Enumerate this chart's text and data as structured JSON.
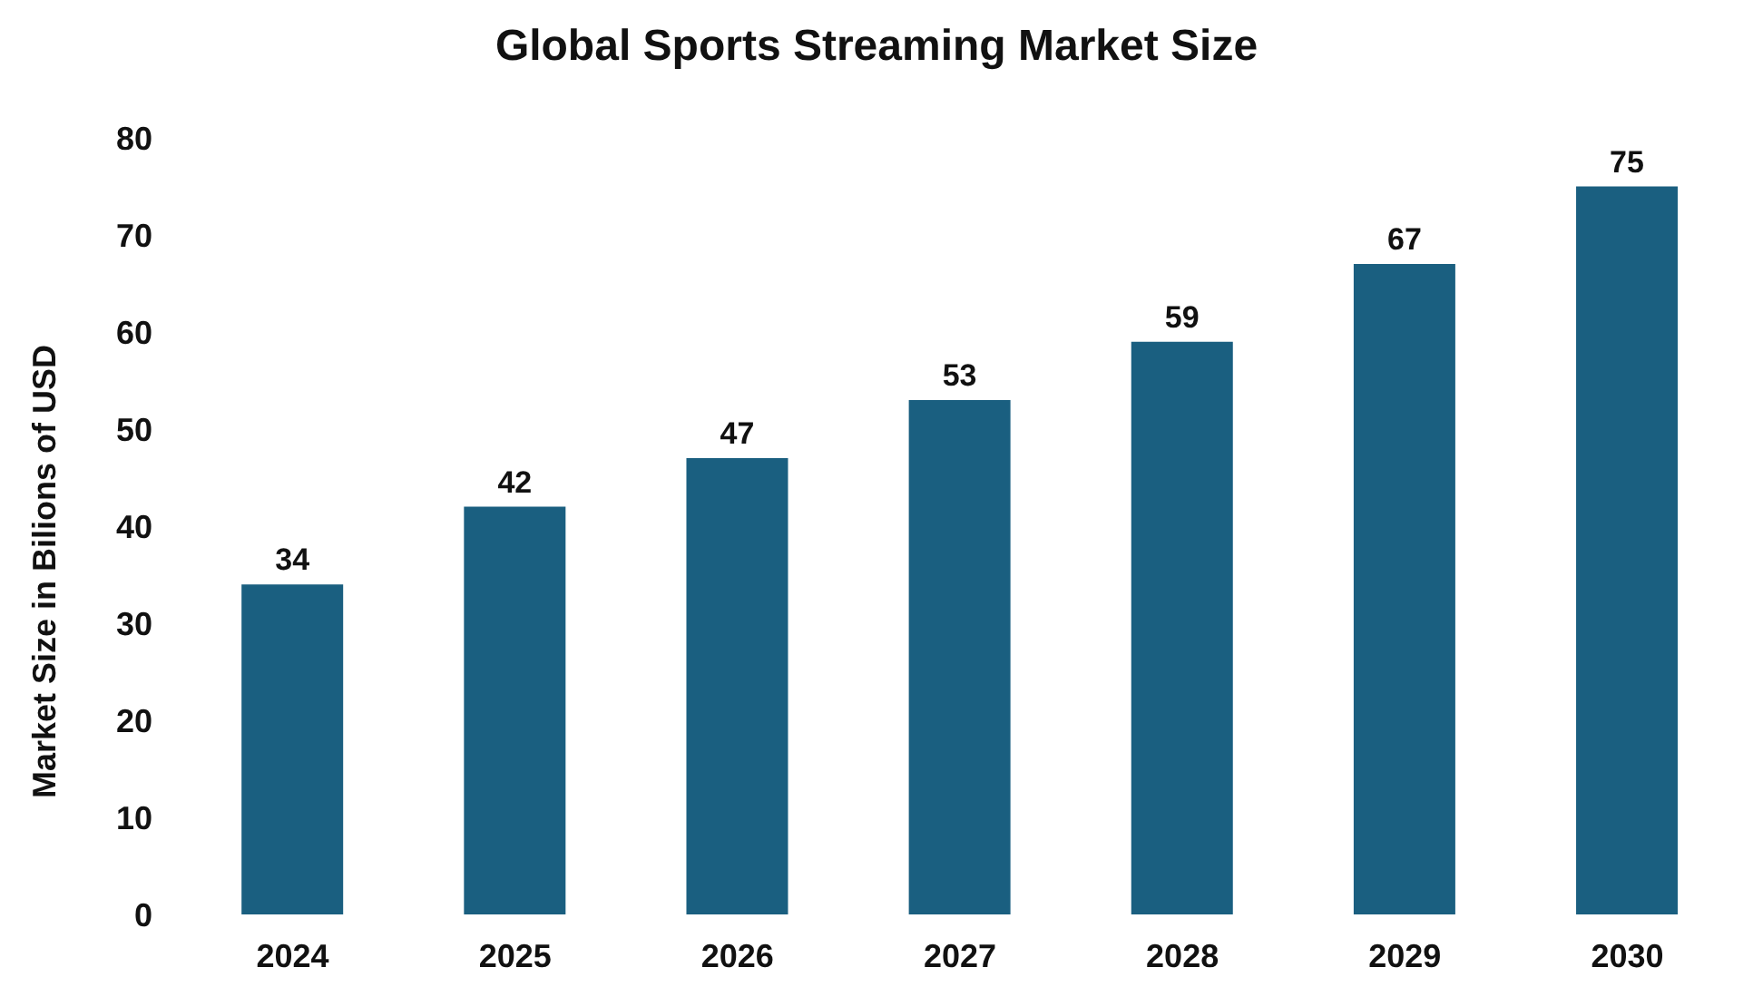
{
  "chart_data": {
    "type": "bar",
    "title": "Global Sports Streaming Market Size",
    "ylabel": "Market Size in Bilions of USD",
    "categories": [
      "2024",
      "2025",
      "2026",
      "2027",
      "2028",
      "2029",
      "2030"
    ],
    "values": [
      34,
      42,
      47,
      53,
      59,
      67,
      75
    ],
    "color": "#1a5f80",
    "ylim": [
      0,
      80
    ],
    "yticks": [
      0,
      10,
      20,
      30,
      40,
      50,
      60,
      70,
      80
    ],
    "grid": false,
    "data_labels": true
  }
}
